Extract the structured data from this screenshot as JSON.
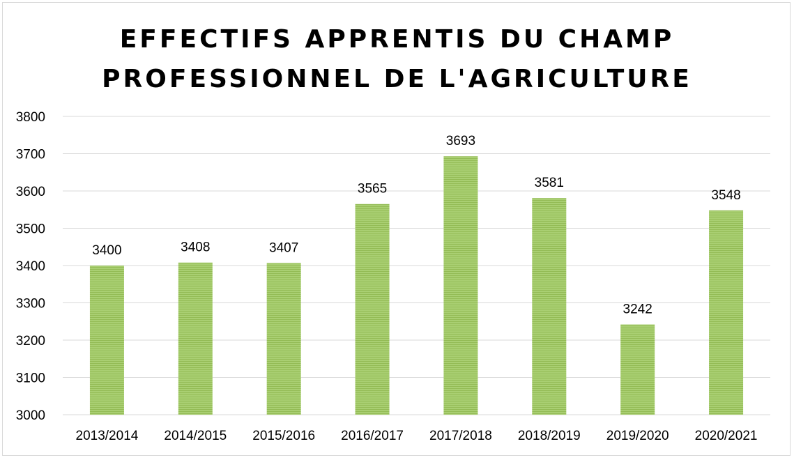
{
  "chart_data": {
    "type": "bar",
    "title_lines": [
      "EFFECTIFS APPRENTIS DU CHAMP",
      "PROFESSIONNEL DE L'AGRICULTURE"
    ],
    "categories": [
      "2013/2014",
      "2014/2015",
      "2015/2016",
      "2016/2017",
      "2017/2018",
      "2018/2019",
      "2019/2020",
      "2020/2021"
    ],
    "values": [
      3400,
      3408,
      3407,
      3565,
      3693,
      3581,
      3242,
      3548
    ],
    "ylim": [
      3000,
      3800
    ],
    "yticks": [
      3000,
      3100,
      3200,
      3300,
      3400,
      3500,
      3600,
      3700,
      3800
    ],
    "grid": true,
    "data_labels": true,
    "bar_color": "#a9cf72",
    "bar_stripe_color": "#93bb55",
    "grid_color": "#d9d9d9"
  }
}
